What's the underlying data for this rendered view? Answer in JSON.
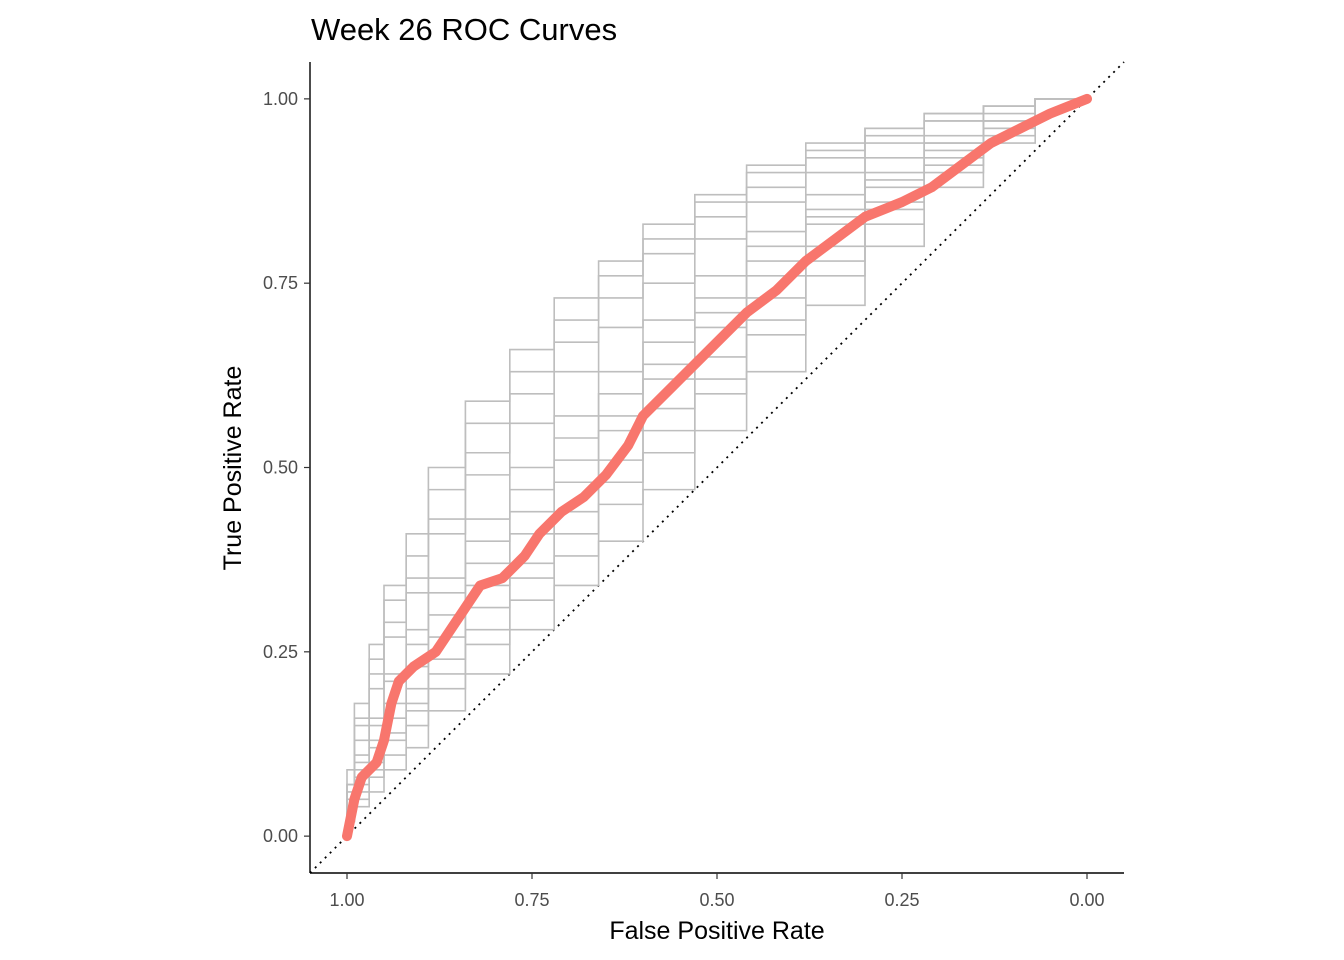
{
  "chart_data": {
    "type": "line",
    "title": "Week 26 ROC Curves",
    "xlabel": "False Positive Rate",
    "ylabel": "True Positive Rate",
    "x_axis_reversed": true,
    "xlim": [
      1.05,
      -0.05
    ],
    "ylim": [
      -0.05,
      1.05
    ],
    "x_ticks": [
      1.0,
      0.75,
      0.5,
      0.25,
      0.0
    ],
    "x_tick_labels": [
      "1.00",
      "0.75",
      "0.50",
      "0.25",
      "0.00"
    ],
    "y_ticks": [
      0.0,
      0.25,
      0.5,
      0.75,
      1.0
    ],
    "y_tick_labels": [
      "0.00",
      "0.25",
      "0.50",
      "0.75",
      "1.00"
    ],
    "grid": false,
    "legend": "none",
    "reference_line": {
      "style": "dotted",
      "color": "#000000",
      "from": [
        1.05,
        -0.05
      ],
      "to": [
        -0.05,
        1.05
      ]
    },
    "background_series_color": "#bebebe",
    "background_series": [
      {
        "points": [
          [
            1.0,
            0.0
          ],
          [
            0.99,
            0.07
          ],
          [
            0.97,
            0.16
          ],
          [
            0.95,
            0.24
          ],
          [
            0.92,
            0.32
          ],
          [
            0.89,
            0.38
          ],
          [
            0.84,
            0.47
          ],
          [
            0.78,
            0.56
          ],
          [
            0.72,
            0.63
          ],
          [
            0.66,
            0.7
          ],
          [
            0.6,
            0.76
          ],
          [
            0.53,
            0.81
          ],
          [
            0.46,
            0.86
          ],
          [
            0.38,
            0.9
          ],
          [
            0.3,
            0.93
          ],
          [
            0.22,
            0.96
          ],
          [
            0.14,
            0.98
          ],
          [
            0.07,
            0.99
          ],
          [
            0.0,
            1.0
          ]
        ]
      },
      {
        "points": [
          [
            1.0,
            0.0
          ],
          [
            0.99,
            0.06
          ],
          [
            0.97,
            0.13
          ],
          [
            0.95,
            0.2
          ],
          [
            0.92,
            0.27
          ],
          [
            0.89,
            0.33
          ],
          [
            0.84,
            0.41
          ],
          [
            0.78,
            0.49
          ],
          [
            0.72,
            0.56
          ],
          [
            0.66,
            0.63
          ],
          [
            0.6,
            0.69
          ],
          [
            0.53,
            0.75
          ],
          [
            0.46,
            0.81
          ],
          [
            0.38,
            0.86
          ],
          [
            0.3,
            0.9
          ],
          [
            0.22,
            0.94
          ],
          [
            0.14,
            0.97
          ],
          [
            0.07,
            0.99
          ],
          [
            0.0,
            1.0
          ]
        ]
      },
      {
        "points": [
          [
            1.0,
            0.0
          ],
          [
            0.99,
            0.05
          ],
          [
            0.97,
            0.11
          ],
          [
            0.95,
            0.16
          ],
          [
            0.92,
            0.22
          ],
          [
            0.89,
            0.28
          ],
          [
            0.84,
            0.35
          ],
          [
            0.78,
            0.43
          ],
          [
            0.72,
            0.5
          ],
          [
            0.66,
            0.57
          ],
          [
            0.6,
            0.63
          ],
          [
            0.53,
            0.7
          ],
          [
            0.46,
            0.76
          ],
          [
            0.38,
            0.82
          ],
          [
            0.3,
            0.87
          ],
          [
            0.22,
            0.92
          ],
          [
            0.14,
            0.95
          ],
          [
            0.07,
            0.98
          ],
          [
            0.0,
            1.0
          ]
        ]
      },
      {
        "points": [
          [
            1.0,
            0.0
          ],
          [
            0.99,
            0.04
          ],
          [
            0.97,
            0.09
          ],
          [
            0.95,
            0.13
          ],
          [
            0.92,
            0.18
          ],
          [
            0.89,
            0.23
          ],
          [
            0.84,
            0.3
          ],
          [
            0.78,
            0.37
          ],
          [
            0.72,
            0.44
          ],
          [
            0.66,
            0.51
          ],
          [
            0.6,
            0.57
          ],
          [
            0.53,
            0.64
          ],
          [
            0.46,
            0.71
          ],
          [
            0.38,
            0.78
          ],
          [
            0.3,
            0.84
          ],
          [
            0.22,
            0.89
          ],
          [
            0.14,
            0.94
          ],
          [
            0.07,
            0.97
          ],
          [
            0.0,
            1.0
          ]
        ]
      },
      {
        "points": [
          [
            1.0,
            0.0
          ],
          [
            0.99,
            0.03
          ],
          [
            0.97,
            0.07
          ],
          [
            0.95,
            0.1
          ],
          [
            0.92,
            0.14
          ],
          [
            0.89,
            0.18
          ],
          [
            0.84,
            0.24
          ],
          [
            0.78,
            0.31
          ],
          [
            0.72,
            0.37
          ],
          [
            0.66,
            0.44
          ],
          [
            0.6,
            0.51
          ],
          [
            0.53,
            0.58
          ],
          [
            0.46,
            0.65
          ],
          [
            0.38,
            0.73
          ],
          [
            0.3,
            0.8
          ],
          [
            0.22,
            0.86
          ],
          [
            0.14,
            0.92
          ],
          [
            0.07,
            0.96
          ],
          [
            0.0,
            1.0
          ]
        ]
      },
      {
        "points": [
          [
            1.0,
            0.0
          ],
          [
            0.99,
            0.02
          ],
          [
            0.97,
            0.05
          ],
          [
            0.95,
            0.08
          ],
          [
            0.92,
            0.11
          ],
          [
            0.89,
            0.15
          ],
          [
            0.84,
            0.2
          ],
          [
            0.78,
            0.26
          ],
          [
            0.72,
            0.32
          ],
          [
            0.66,
            0.38
          ],
          [
            0.6,
            0.45
          ],
          [
            0.53,
            0.52
          ],
          [
            0.46,
            0.6
          ],
          [
            0.38,
            0.68
          ],
          [
            0.3,
            0.76
          ],
          [
            0.22,
            0.83
          ],
          [
            0.14,
            0.9
          ],
          [
            0.07,
            0.95
          ],
          [
            0.0,
            1.0
          ]
        ]
      },
      {
        "points": [
          [
            1.0,
            0.0
          ],
          [
            0.99,
            0.02
          ],
          [
            0.97,
            0.04
          ],
          [
            0.95,
            0.06
          ],
          [
            0.92,
            0.09
          ],
          [
            0.89,
            0.12
          ],
          [
            0.84,
            0.17
          ],
          [
            0.78,
            0.22
          ],
          [
            0.72,
            0.28
          ],
          [
            0.66,
            0.34
          ],
          [
            0.6,
            0.4
          ],
          [
            0.53,
            0.47
          ],
          [
            0.46,
            0.55
          ],
          [
            0.38,
            0.63
          ],
          [
            0.3,
            0.72
          ],
          [
            0.22,
            0.8
          ],
          [
            0.14,
            0.88
          ],
          [
            0.07,
            0.94
          ],
          [
            0.0,
            1.0
          ]
        ]
      },
      {
        "points": [
          [
            1.0,
            0.0
          ],
          [
            0.99,
            0.09
          ],
          [
            0.97,
            0.18
          ],
          [
            0.95,
            0.26
          ],
          [
            0.92,
            0.34
          ],
          [
            0.89,
            0.41
          ],
          [
            0.84,
            0.5
          ],
          [
            0.78,
            0.59
          ],
          [
            0.72,
            0.66
          ],
          [
            0.66,
            0.73
          ],
          [
            0.6,
            0.78
          ],
          [
            0.53,
            0.83
          ],
          [
            0.46,
            0.87
          ],
          [
            0.38,
            0.91
          ],
          [
            0.3,
            0.94
          ],
          [
            0.22,
            0.96
          ],
          [
            0.14,
            0.98
          ],
          [
            0.07,
            0.99
          ],
          [
            0.0,
            1.0
          ]
        ]
      },
      {
        "points": [
          [
            1.0,
            0.0
          ],
          [
            0.99,
            0.07
          ],
          [
            0.97,
            0.15
          ],
          [
            0.95,
            0.22
          ],
          [
            0.92,
            0.29
          ],
          [
            0.89,
            0.35
          ],
          [
            0.84,
            0.43
          ],
          [
            0.78,
            0.52
          ],
          [
            0.72,
            0.6
          ],
          [
            0.66,
            0.67
          ],
          [
            0.6,
            0.73
          ],
          [
            0.53,
            0.79
          ],
          [
            0.46,
            0.84
          ],
          [
            0.38,
            0.88
          ],
          [
            0.3,
            0.92
          ],
          [
            0.22,
            0.95
          ],
          [
            0.14,
            0.97
          ],
          [
            0.07,
            0.99
          ],
          [
            0.0,
            1.0
          ]
        ]
      },
      {
        "points": [
          [
            1.0,
            0.0
          ],
          [
            0.99,
            0.05
          ],
          [
            0.97,
            0.1
          ],
          [
            0.95,
            0.15
          ],
          [
            0.92,
            0.21
          ],
          [
            0.89,
            0.26
          ],
          [
            0.84,
            0.33
          ],
          [
            0.78,
            0.4
          ],
          [
            0.72,
            0.47
          ],
          [
            0.66,
            0.54
          ],
          [
            0.6,
            0.6
          ],
          [
            0.53,
            0.67
          ],
          [
            0.46,
            0.73
          ],
          [
            0.38,
            0.8
          ],
          [
            0.3,
            0.85
          ],
          [
            0.22,
            0.9
          ],
          [
            0.14,
            0.94
          ],
          [
            0.07,
            0.97
          ],
          [
            0.0,
            1.0
          ]
        ]
      },
      {
        "points": [
          [
            1.0,
            0.0
          ],
          [
            0.99,
            0.03
          ],
          [
            0.97,
            0.06
          ],
          [
            0.95,
            0.09
          ],
          [
            0.92,
            0.13
          ],
          [
            0.89,
            0.17
          ],
          [
            0.84,
            0.22
          ],
          [
            0.78,
            0.28
          ],
          [
            0.72,
            0.35
          ],
          [
            0.66,
            0.41
          ],
          [
            0.6,
            0.48
          ],
          [
            0.53,
            0.55
          ],
          [
            0.46,
            0.62
          ],
          [
            0.38,
            0.7
          ],
          [
            0.3,
            0.78
          ],
          [
            0.22,
            0.85
          ],
          [
            0.14,
            0.91
          ],
          [
            0.07,
            0.96
          ],
          [
            0.0,
            1.0
          ]
        ]
      },
      {
        "points": [
          [
            1.0,
            0.0
          ],
          [
            0.99,
            0.04
          ],
          [
            0.97,
            0.08
          ],
          [
            0.95,
            0.12
          ],
          [
            0.92,
            0.16
          ],
          [
            0.89,
            0.2
          ],
          [
            0.84,
            0.27
          ],
          [
            0.78,
            0.34
          ],
          [
            0.72,
            0.41
          ],
          [
            0.66,
            0.48
          ],
          [
            0.6,
            0.55
          ],
          [
            0.53,
            0.62
          ],
          [
            0.46,
            0.69
          ],
          [
            0.38,
            0.76
          ],
          [
            0.3,
            0.83
          ],
          [
            0.22,
            0.88
          ],
          [
            0.14,
            0.93
          ],
          [
            0.07,
            0.97
          ],
          [
            0.0,
            1.0
          ]
        ]
      }
    ],
    "series": [
      {
        "color": "#f8766d",
        "points": [
          [
            1.0,
            0.0
          ],
          [
            0.99,
            0.05
          ],
          [
            0.98,
            0.08
          ],
          [
            0.96,
            0.1
          ],
          [
            0.95,
            0.13
          ],
          [
            0.94,
            0.18
          ],
          [
            0.93,
            0.21
          ],
          [
            0.91,
            0.23
          ],
          [
            0.88,
            0.25
          ],
          [
            0.86,
            0.28
          ],
          [
            0.84,
            0.31
          ],
          [
            0.82,
            0.34
          ],
          [
            0.79,
            0.35
          ],
          [
            0.76,
            0.38
          ],
          [
            0.74,
            0.41
          ],
          [
            0.71,
            0.44
          ],
          [
            0.68,
            0.46
          ],
          [
            0.65,
            0.49
          ],
          [
            0.62,
            0.53
          ],
          [
            0.6,
            0.57
          ],
          [
            0.56,
            0.61
          ],
          [
            0.53,
            0.64
          ],
          [
            0.5,
            0.67
          ],
          [
            0.46,
            0.71
          ],
          [
            0.42,
            0.74
          ],
          [
            0.38,
            0.78
          ],
          [
            0.34,
            0.81
          ],
          [
            0.3,
            0.84
          ],
          [
            0.25,
            0.86
          ],
          [
            0.21,
            0.88
          ],
          [
            0.17,
            0.91
          ],
          [
            0.13,
            0.94
          ],
          [
            0.09,
            0.96
          ],
          [
            0.05,
            0.98
          ],
          [
            0.0,
            1.0
          ]
        ]
      }
    ]
  }
}
